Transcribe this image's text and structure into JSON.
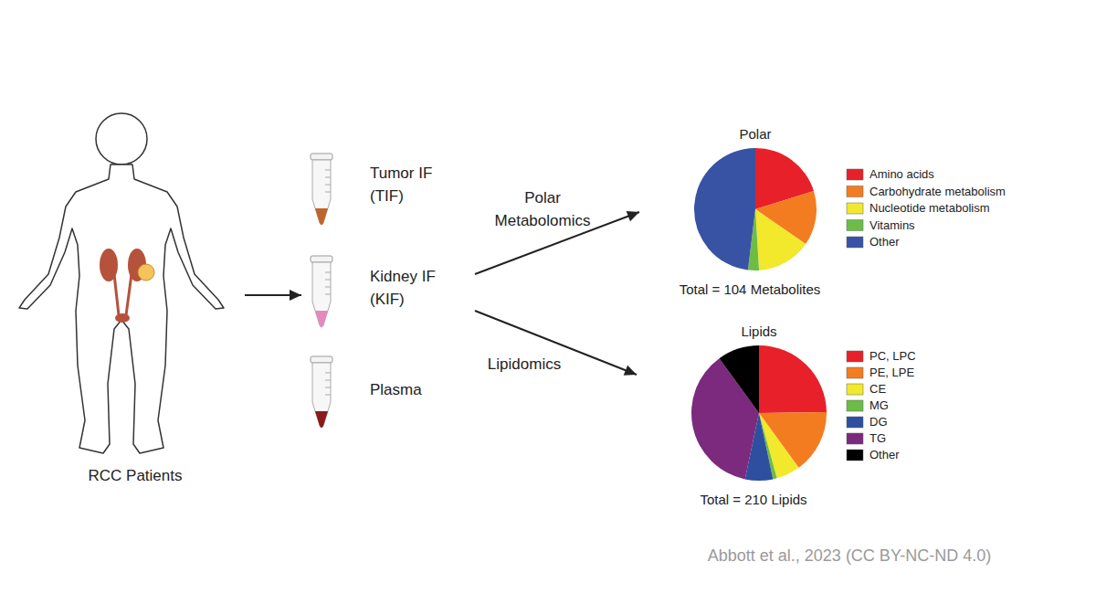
{
  "patients": {
    "label": "RCC Patients"
  },
  "samples": [
    {
      "lines": [
        "Tumor IF",
        "(TIF)"
      ],
      "fill": "#c0652a"
    },
    {
      "lines": [
        "Kidney IF",
        "(KIF)"
      ],
      "fill": "#e58abb"
    },
    {
      "lines": [
        "Plasma"
      ],
      "fill": "#8b1a1a"
    }
  ],
  "methods": [
    {
      "lines": [
        "Polar",
        "Metabolomics"
      ]
    },
    {
      "lines": [
        "Lipidomics"
      ]
    }
  ],
  "chart_data": [
    {
      "type": "pie",
      "title": "Polar",
      "note": "Total = 104 Metabolites",
      "categories": [
        "Amino acids",
        "Carbohydrate metabolism",
        "Nucleotide metabolism",
        "Vitamins",
        "Other"
      ],
      "values": [
        21,
        15,
        15,
        3,
        50
      ],
      "colors": [
        "#e8202a",
        "#f47c20",
        "#f2e82c",
        "#6cbd45",
        "#3953a4"
      ]
    },
    {
      "type": "pie",
      "title": "Lipids",
      "note": "Total = 210 Lipids",
      "categories": [
        "PC, LPC",
        "PE, LPE",
        "CE",
        "MG",
        "DG",
        "TG",
        "Other"
      ],
      "values": [
        52,
        32,
        12,
        2,
        14,
        77,
        21
      ],
      "colors": [
        "#e8202a",
        "#f47c20",
        "#f2e82c",
        "#6cbd45",
        "#2e4fa0",
        "#7b2a7e",
        "#000000"
      ]
    }
  ],
  "credit": "Abbott et al., 2023 (CC BY-NC-ND 4.0)"
}
